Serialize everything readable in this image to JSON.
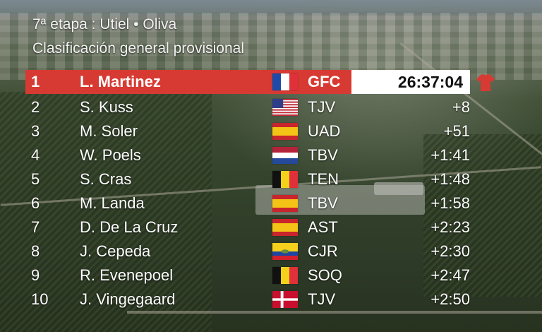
{
  "header": {
    "stage": "7ª etapa : Utiel • Oliva",
    "classification": "Clasificación general provisional"
  },
  "colors": {
    "leader_row": "#d63a32",
    "leader_time_bg": "#ffffff"
  },
  "standings": [
    {
      "pos": "1",
      "name": "L. Martinez",
      "flag": "france-flag-icon",
      "team": "GFC",
      "time": "26:37:04"
    },
    {
      "pos": "2",
      "name": "S. Kuss",
      "flag": "usa-flag-icon",
      "team": "TJV",
      "time": "+8"
    },
    {
      "pos": "3",
      "name": "M. Soler",
      "flag": "spain-flag-icon",
      "team": "UAD",
      "time": "+51"
    },
    {
      "pos": "4",
      "name": "W. Poels",
      "flag": "netherlands-flag-icon",
      "team": "TBV",
      "time": "+1:41"
    },
    {
      "pos": "5",
      "name": "S. Cras",
      "flag": "belgium-flag-icon",
      "team": "TEN",
      "time": "+1:48"
    },
    {
      "pos": "6",
      "name": "M. Landa",
      "flag": "spain-flag-icon",
      "team": "TBV",
      "time": "+1:58"
    },
    {
      "pos": "7",
      "name": "D. De La Cruz",
      "flag": "spain-flag-icon",
      "team": "AST",
      "time": "+2:23"
    },
    {
      "pos": "8",
      "name": "J. Cepeda",
      "flag": "ecuador-flag-icon",
      "team": "CJR",
      "time": "+2:30"
    },
    {
      "pos": "9",
      "name": "R. Evenepoel",
      "flag": "belgium-flag-icon",
      "team": "SOQ",
      "time": "+2:47"
    },
    {
      "pos": "10",
      "name": "J. Vingegaard",
      "flag": "denmark-flag-icon",
      "team": "TJV",
      "time": "+2:50"
    }
  ]
}
